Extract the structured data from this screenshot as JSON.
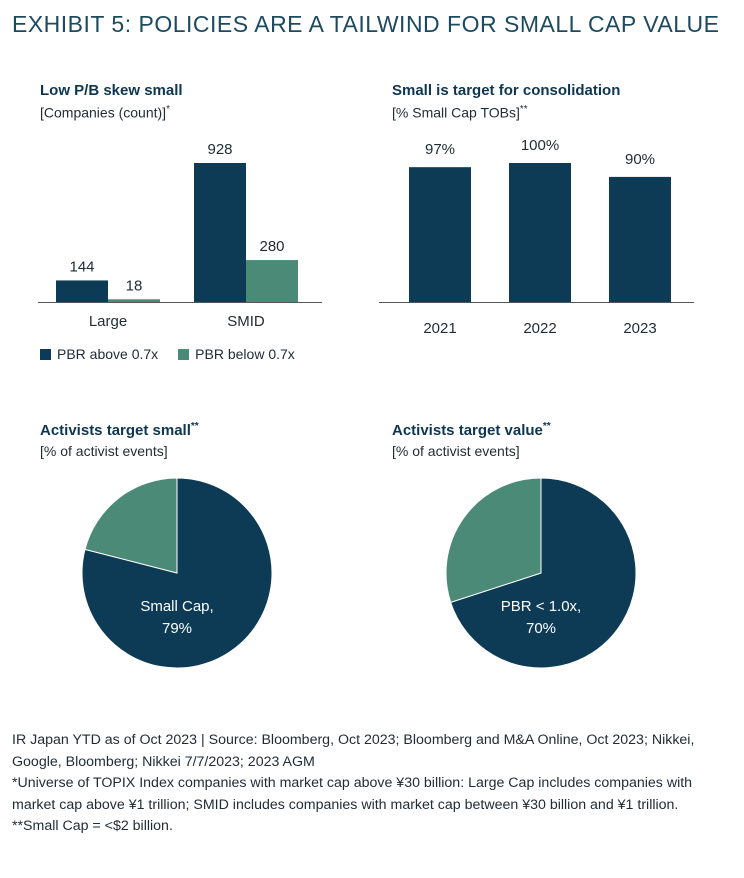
{
  "exhibit_title": "EXHIBIT 5: POLICIES ARE A TAILWIND FOR SMALL CAP VALUE",
  "colors": {
    "dark": "#0d3b56",
    "green": "#4b8a77",
    "axis": "#555555",
    "title": "#1e4a60"
  },
  "legend": {
    "items": [
      {
        "label": "PBR above 0.7x",
        "color": "#0d3b56"
      },
      {
        "label": "PBR below 0.7x",
        "color": "#4b8a77"
      }
    ]
  },
  "chart_data": [
    {
      "type": "bar",
      "title": "Low P/B skew small",
      "subtitle": "[Companies (count)]",
      "subtitle_marker": "*",
      "categories": [
        "Large",
        "SMID"
      ],
      "series": [
        {
          "name": "PBR above 0.7x",
          "values": [
            144,
            928
          ]
        },
        {
          "name": "PBR below 0.7x",
          "values": [
            18,
            280
          ]
        }
      ],
      "data_labels": [
        [
          "144",
          "928"
        ],
        [
          "18",
          "280"
        ]
      ],
      "ylim": [
        0,
        928
      ],
      "legend_position": "bottom"
    },
    {
      "type": "bar",
      "title": "Small is target for consolidation",
      "subtitle": "[% Small Cap TOBs]",
      "subtitle_marker": "**",
      "categories": [
        "2021",
        "2022",
        "2023"
      ],
      "values": [
        97,
        100,
        90
      ],
      "data_labels": [
        "97%",
        "100%",
        "90%"
      ],
      "ylim": [
        0,
        100
      ]
    },
    {
      "type": "pie",
      "title": "Activists target small",
      "title_marker": "**",
      "subtitle": "[% of activist events]",
      "slices": [
        {
          "label": "Small Cap,",
          "value_label": "79%",
          "value": 79
        },
        {
          "label": "",
          "value_label": "",
          "value": 21
        }
      ]
    },
    {
      "type": "pie",
      "title": "Activists target value",
      "title_marker": "**",
      "subtitle": "[% of activist events]",
      "slices": [
        {
          "label": "PBR < 1.0x,",
          "value_label": "70%",
          "value": 70
        },
        {
          "label": "",
          "value_label": "",
          "value": 30
        }
      ]
    }
  ],
  "footnotes": [
    "IR Japan YTD as of Oct 2023 | Source: Bloomberg, Oct 2023; Bloomberg and M&A Online, Oct 2023; Nikkei, Google, Bloomberg; Nikkei  7/7/2023; 2023 AGM",
    "*Universe of TOPIX Index companies with market cap above ¥30 billion: Large Cap includes companies with market cap above ¥1 trillion; SMID includes companies with market cap between ¥30 billion and ¥1 trillion.",
    "**Small Cap = <$2 billion."
  ]
}
